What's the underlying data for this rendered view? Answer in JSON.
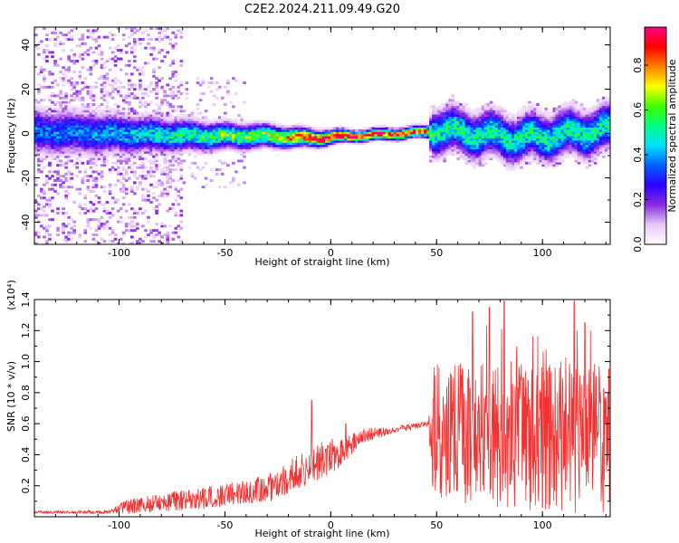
{
  "figure_title": "C2E2.2024.211.09.49.G20",
  "chart_data": [
    {
      "type": "heatmap",
      "title": "",
      "xlabel": "Height of straight line (km)",
      "ylabel": "Frequency (Hz)",
      "xlim": [
        -140,
        132
      ],
      "ylim": [
        -50,
        48
      ],
      "x_ticks": [
        -100,
        -50,
        0,
        50,
        100
      ],
      "y_ticks": [
        -40,
        -20,
        0,
        20,
        40
      ],
      "colorbar": {
        "label": "Normalized spectral amplitude",
        "range": [
          0.0,
          0.97
        ],
        "ticks": [
          "0.0",
          "0.2",
          "0.4",
          "0.6",
          "0.8"
        ],
        "tick_values": [
          0.0,
          0.2,
          0.4,
          0.6,
          0.8
        ],
        "colors": [
          "#ffffff",
          "#e8c8f8",
          "#8a2be2",
          "#2a00ff",
          "#0060ff",
          "#00e0ff",
          "#00ff80",
          "#40ff00",
          "#ffff00",
          "#ff8000",
          "#ff0000",
          "#ff0080"
        ]
      },
      "ridge": [
        {
          "x": -140,
          "y": 1,
          "width": 8,
          "amp": 0.35
        },
        {
          "x": -100,
          "y": 0,
          "width": 7,
          "amp": 0.4
        },
        {
          "x": -60,
          "y": -1,
          "width": 5,
          "amp": 0.55
        },
        {
          "x": -30,
          "y": -1,
          "width": 4,
          "amp": 0.65
        },
        {
          "x": -10,
          "y": -2,
          "width": 3,
          "amp": 0.9
        },
        {
          "x": 10,
          "y": -1,
          "width": 2,
          "amp": 0.92
        },
        {
          "x": 30,
          "y": 0,
          "width": 2,
          "amp": 0.88
        },
        {
          "x": 46,
          "y": 1,
          "width": 2,
          "amp": 0.8
        },
        {
          "x": 48,
          "y": 2,
          "width": 8,
          "amp": 0.5
        },
        {
          "x": 90,
          "y": -2,
          "width": 8,
          "amp": 0.5
        },
        {
          "x": 132,
          "y": 2,
          "width": 8,
          "amp": 0.5
        }
      ]
    },
    {
      "type": "line",
      "title": "",
      "xlabel": "Height of straight line (km)",
      "ylabel": "SNR (10 * v/v)",
      "y_multiplier": "(x10⁴)",
      "xlim": [
        -140,
        132
      ],
      "ylim": [
        0,
        1.4
      ],
      "x_ticks": [
        -100,
        -50,
        0,
        50,
        100
      ],
      "y_ticks": [
        "0.2",
        "0.4",
        "0.6",
        "0.8",
        "1.0",
        "1.2",
        "1.4"
      ],
      "y_tick_values": [
        0.2,
        0.4,
        0.6,
        0.8,
        1.0,
        1.2,
        1.4
      ],
      "series_color": "#f03232",
      "envelope": [
        {
          "x": -140,
          "mean": 0.03,
          "noise": 0.01
        },
        {
          "x": -105,
          "mean": 0.03,
          "noise": 0.01
        },
        {
          "x": -95,
          "mean": 0.07,
          "noise": 0.05
        },
        {
          "x": -60,
          "mean": 0.12,
          "noise": 0.07
        },
        {
          "x": -40,
          "mean": 0.16,
          "noise": 0.08
        },
        {
          "x": -25,
          "mean": 0.2,
          "noise": 0.1
        },
        {
          "x": -15,
          "mean": 0.3,
          "noise": 0.12
        },
        {
          "x": -5,
          "mean": 0.36,
          "noise": 0.12
        },
        {
          "x": 5,
          "mean": 0.42,
          "noise": 0.1
        },
        {
          "x": 15,
          "mean": 0.52,
          "noise": 0.05
        },
        {
          "x": 30,
          "mean": 0.56,
          "noise": 0.02
        },
        {
          "x": 46,
          "mean": 0.6,
          "noise": 0.02
        },
        {
          "x": 48,
          "mean": 0.55,
          "noise": 0.3
        },
        {
          "x": 132,
          "mean": 0.5,
          "noise": 0.32
        }
      ],
      "peaks": [
        {
          "x": -9,
          "y": 0.75
        },
        {
          "x": 7,
          "y": 0.6
        },
        {
          "x": 67,
          "y": 1.32
        },
        {
          "x": 75,
          "y": 1.35
        },
        {
          "x": 82,
          "y": 1.39
        },
        {
          "x": 115,
          "y": 1.39
        },
        {
          "x": 120,
          "y": 1.25
        }
      ]
    }
  ]
}
